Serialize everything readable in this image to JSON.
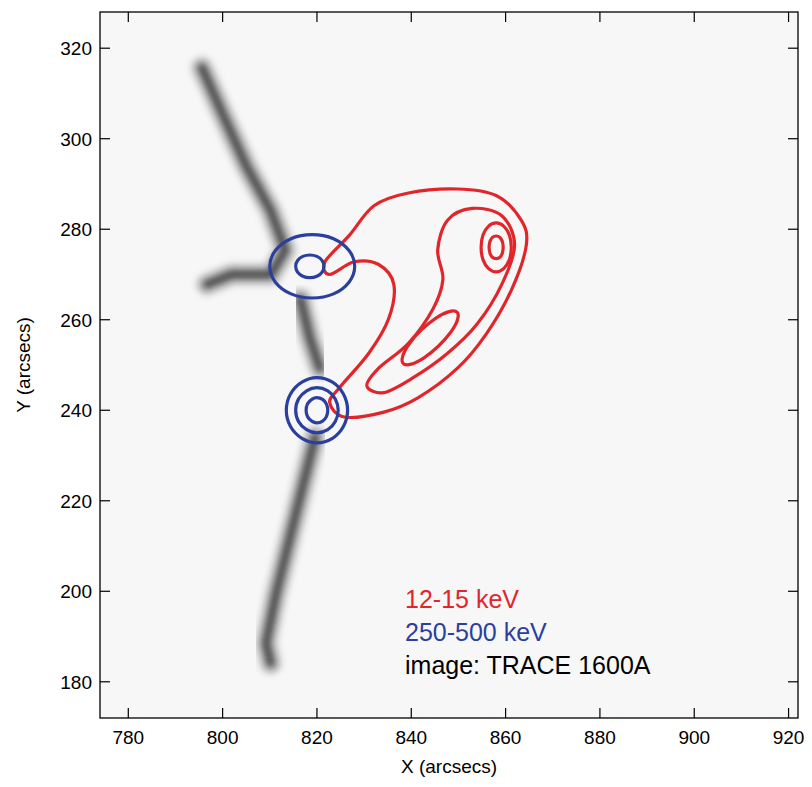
{
  "chart_data": {
    "type": "contour",
    "x_label": "X (arcsecs)",
    "y_label": "Y (arcsecs)",
    "xlim": [
      774,
      922
    ],
    "ylim": [
      172,
      328
    ],
    "xticks": [
      780,
      800,
      820,
      840,
      860,
      880,
      900,
      920
    ],
    "yticks": [
      180,
      200,
      220,
      240,
      260,
      280,
      300,
      320
    ],
    "legend": "lower right",
    "image_label": "image: TRACE 1600A",
    "background": [
      {
        "points": [
          [
            795.6,
            315.7
          ],
          [
            799.8,
            305.9
          ],
          [
            805.0,
            294.0
          ],
          [
            810.2,
            284.1
          ],
          [
            813.3,
            275.4
          ],
          [
            810.2,
            270.0
          ],
          [
            801.9,
            270.0
          ],
          [
            796.7,
            267.8
          ]
        ]
      },
      {
        "points": [
          [
            816.5,
            264.6
          ],
          [
            818.5,
            255.9
          ],
          [
            820.6,
            249.3
          ]
        ]
      },
      {
        "points": [
          [
            819.6,
            234.1
          ],
          [
            817.5,
            225.4
          ],
          [
            814.4,
            212.4
          ],
          [
            811.3,
            199.3
          ],
          [
            809.2,
            188.5
          ],
          [
            810.2,
            184.1
          ]
        ]
      }
    ],
    "series": [
      {
        "name": "12-15 keV",
        "color": "#e0262b",
        "contours": [
          [
            [
              821.7,
              272.8
            ],
            [
              826.9,
              278.7
            ],
            [
              832.1,
              285.2
            ],
            [
              839.4,
              288.0
            ],
            [
              849.8,
              288.9
            ],
            [
              858.1,
              287.4
            ],
            [
              863.3,
              282.0
            ],
            [
              864.4,
              276.5
            ],
            [
              861.3,
              266.7
            ],
            [
              856.0,
              257.0
            ],
            [
              849.8,
              249.3
            ],
            [
              841.5,
              242.8
            ],
            [
              834.2,
              239.6
            ],
            [
              825.8,
              238.5
            ],
            [
              822.7,
              241.7
            ],
            [
              824.8,
              245.0
            ],
            [
              831.0,
              252.6
            ],
            [
              835.2,
              260.2
            ],
            [
              836.3,
              267.8
            ],
            [
              833.1,
              272.2
            ],
            [
              827.9,
              272.8
            ],
            [
              822.7,
              270.0
            ]
          ],
          [
            [
              845.6,
              275.4
            ],
            [
              847.7,
              282.0
            ],
            [
              852.9,
              284.6
            ],
            [
              859.2,
              283.0
            ],
            [
              861.9,
              276.5
            ],
            [
              859.2,
              267.8
            ],
            [
              854.0,
              259.1
            ],
            [
              847.7,
              252.6
            ],
            [
              840.4,
              247.2
            ],
            [
              834.2,
              243.9
            ],
            [
              830.6,
              245.4
            ],
            [
              833.1,
              249.3
            ],
            [
              839.4,
              254.8
            ],
            [
              844.6,
              262.4
            ],
            [
              846.7,
              268.9
            ]
          ],
          [
            [
              861.2,
              276.0
            ],
            [
              860.8,
              278.7
            ],
            [
              859.6,
              280.7
            ],
            [
              858.0,
              281.4
            ],
            [
              856.4,
              280.7
            ],
            [
              855.2,
              278.7
            ],
            [
              854.8,
              276.0
            ],
            [
              855.2,
              273.3
            ],
            [
              856.4,
              271.3
            ],
            [
              858.0,
              270.6
            ],
            [
              859.6,
              271.3
            ],
            [
              860.8,
              273.3
            ]
          ],
          [
            [
              849.7,
              261.7
            ],
            [
              848.0,
              261.8
            ],
            [
              845.3,
              260.4
            ],
            [
              842.2,
              257.8
            ],
            [
              839.6,
              254.7
            ],
            [
              838.2,
              252.0
            ],
            [
              838.3,
              250.3
            ],
            [
              840.0,
              250.2
            ],
            [
              842.7,
              251.6
            ],
            [
              845.8,
              254.2
            ],
            [
              848.4,
              257.3
            ],
            [
              849.8,
              260.0
            ]
          ],
          [
            [
              859.5,
              276.0
            ],
            [
              859.3,
              277.3
            ],
            [
              858.8,
              278.2
            ],
            [
              858.0,
              278.5
            ],
            [
              857.2,
              278.2
            ],
            [
              856.7,
              277.3
            ],
            [
              856.5,
              276.0
            ],
            [
              856.7,
              274.7
            ],
            [
              857.2,
              273.8
            ],
            [
              858.0,
              273.5
            ],
            [
              858.8,
              273.8
            ],
            [
              859.3,
              274.7
            ]
          ]
        ]
      },
      {
        "name": "250-500 keV",
        "color": "#2a3f9e",
        "contours": [
          [
            [
              826.5,
              240.0
            ],
            [
              825.6,
              243.6
            ],
            [
              823.3,
              246.2
            ],
            [
              820.0,
              247.2
            ],
            [
              816.8,
              246.2
            ],
            [
              814.4,
              243.6
            ],
            [
              813.5,
              240.0
            ],
            [
              814.4,
              236.4
            ],
            [
              816.8,
              233.8
            ],
            [
              820.0,
              232.8
            ],
            [
              823.3,
              233.8
            ],
            [
              825.6,
              236.4
            ]
          ],
          [
            [
              824.5,
              240.0
            ],
            [
              823.9,
              242.5
            ],
            [
              822.3,
              244.3
            ],
            [
              820.0,
              245.0
            ],
            [
              817.8,
              244.3
            ],
            [
              816.1,
              242.5
            ],
            [
              815.5,
              240.0
            ],
            [
              816.1,
              237.5
            ],
            [
              817.8,
              235.7
            ],
            [
              820.0,
              235.0
            ],
            [
              822.3,
              235.7
            ],
            [
              823.9,
              237.5
            ]
          ],
          [
            [
              822.3,
              240.0
            ],
            [
              822.0,
              241.4
            ],
            [
              821.2,
              242.4
            ],
            [
              820.0,
              242.8
            ],
            [
              818.9,
              242.4
            ],
            [
              818.0,
              241.4
            ],
            [
              817.7,
              240.0
            ],
            [
              818.0,
              238.6
            ],
            [
              818.9,
              237.6
            ],
            [
              820.0,
              237.2
            ],
            [
              821.2,
              237.6
            ],
            [
              822.0,
              238.6
            ]
          ],
          [
            [
              828.0,
              271.8
            ],
            [
              826.8,
              275.3
            ],
            [
              823.5,
              277.9
            ],
            [
              819.0,
              278.8
            ],
            [
              814.5,
              277.9
            ],
            [
              811.2,
              275.3
            ],
            [
              810.0,
              271.8
            ],
            [
              811.2,
              268.3
            ],
            [
              814.5,
              265.7
            ],
            [
              819.0,
              264.8
            ],
            [
              823.5,
              265.7
            ],
            [
              826.8,
              268.3
            ]
          ],
          [
            [
              821.5,
              271.8
            ],
            [
              821.1,
              273.1
            ],
            [
              820.0,
              274.0
            ],
            [
              818.5,
              274.3
            ],
            [
              817.0,
              274.0
            ],
            [
              815.9,
              273.1
            ],
            [
              815.5,
              271.8
            ],
            [
              815.9,
              270.5
            ],
            [
              817.0,
              269.6
            ],
            [
              818.5,
              269.3
            ],
            [
              820.0,
              269.6
            ],
            [
              821.1,
              270.5
            ]
          ]
        ]
      }
    ]
  }
}
